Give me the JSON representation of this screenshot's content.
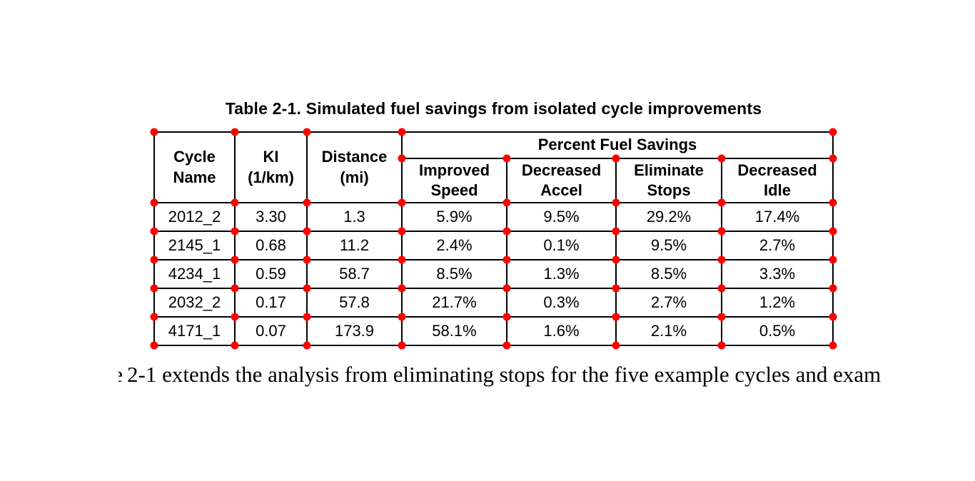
{
  "caption": "Table 2-1. Simulated fuel savings from isolated cycle improvements",
  "table": {
    "column_headers": {
      "cycle_name": "Cycle\nName",
      "ki": "KI\n(1/km)",
      "distance": "Distance\n(mi)",
      "percent_fuel_savings": "Percent Fuel Savings",
      "improved_speed": "Improved\nSpeed",
      "decreased_accel": "Decreased\nAccel",
      "eliminate_stops": "Eliminate\nStops",
      "decreased_idle": "Decreased\nIdle"
    },
    "rows": [
      {
        "cells": [
          "2012_2",
          "3.30",
          "1.3",
          "5.9%",
          "9.5%",
          "29.2%",
          "17.4%"
        ]
      },
      {
        "cells": [
          "2145_1",
          "0.68",
          "11.2",
          "2.4%",
          "0.1%",
          "9.5%",
          "2.7%"
        ]
      },
      {
        "cells": [
          "4234_1",
          "0.59",
          "58.7",
          "8.5%",
          "1.3%",
          "8.5%",
          "3.3%"
        ]
      },
      {
        "cells": [
          "2032_2",
          "0.17",
          "57.8",
          "21.7%",
          "0.3%",
          "2.7%",
          "1.2%"
        ]
      },
      {
        "cells": [
          "4171_1",
          "0.07",
          "173.9",
          "58.1%",
          "1.6%",
          "2.1%",
          "0.5%"
        ]
      }
    ]
  },
  "annotation": {
    "corner_dot_color": "#fe0000"
  },
  "paragraph": {
    "clipped_prefix": "e",
    "text": "2-1 extends the analysis from eliminating stops for the five example cycles and exam"
  }
}
